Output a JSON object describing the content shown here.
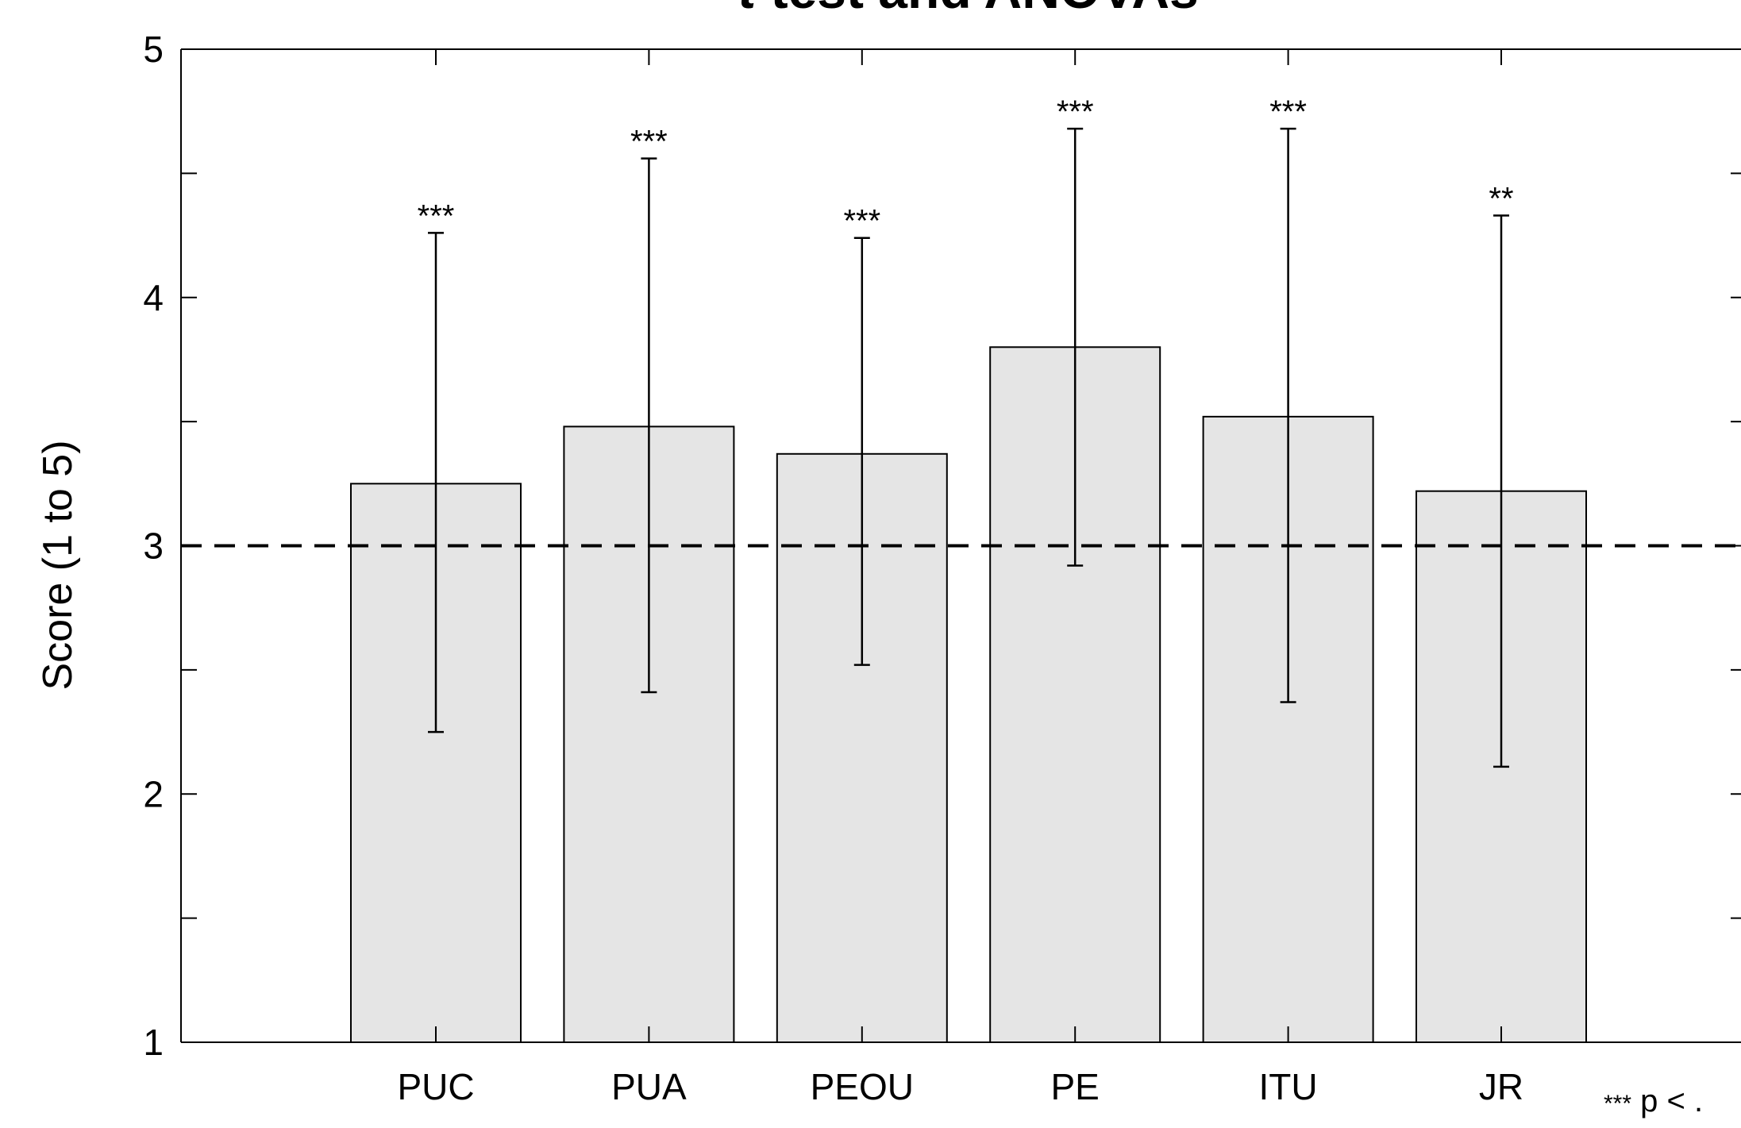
{
  "chart_data": {
    "type": "bar",
    "title_main": "t test and ANOVAs",
    "title_italic": "t",
    "title_rest": " test and ANOVAs",
    "ylabel": "Score (1 to 5)",
    "xlabel": "",
    "ylim": [
      1,
      5
    ],
    "yticks": [
      1,
      2,
      3,
      4,
      5
    ],
    "categories": [
      "PUC",
      "PUA",
      "PEOU",
      "PE",
      "ITU",
      "JR"
    ],
    "values": [
      3.25,
      3.48,
      3.37,
      3.8,
      3.52,
      3.22
    ],
    "error_low": [
      2.25,
      2.41,
      2.52,
      2.92,
      2.37,
      2.11
    ],
    "error_high": [
      4.26,
      4.56,
      4.24,
      4.68,
      4.68,
      4.33
    ],
    "significance": [
      "***",
      "***",
      "***",
      "***",
      "***",
      "**"
    ],
    "reference_line": 3,
    "footnote_stars": "***",
    "footnote_text": " p < .",
    "grid": false,
    "bar_color": "#e5e5e5",
    "edge_color": "#000000"
  }
}
